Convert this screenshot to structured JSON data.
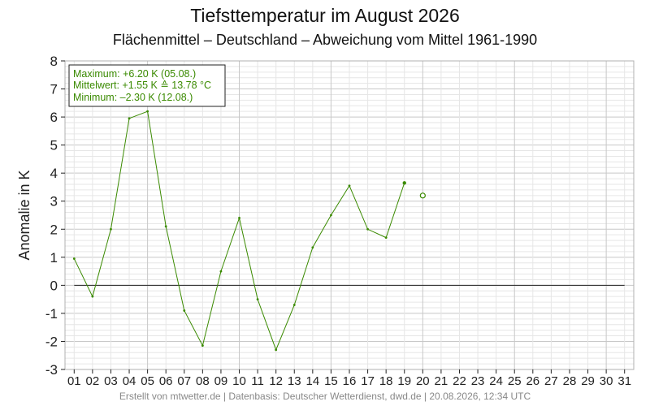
{
  "header": {
    "title": "Tiefsttemperatur im August 2026",
    "subtitle": "Flächenmittel – Deutschland – Abweichung vom Mittel 1961-1990"
  },
  "footer": {
    "text": "Erstellt von mtwetter.de | Datenbasis: Deutscher Wetterdienst, dwd.de | 20.08.2026, 12:34 UTC"
  },
  "stats": {
    "max": "Maximum: +6.20 K  (05.08.)",
    "mean": "Mittelwert: +1.55 K  ≙  13.78 °C",
    "min": "Minimum:   –2.30 K  (12.08.)"
  },
  "colors": {
    "series": "#3a8a00",
    "grid_major": "#c8c8c8",
    "grid_minor": "#e6e6e6",
    "zero_line": "#222222"
  },
  "chart_data": {
    "type": "line",
    "ylabel": "Anomalie in K",
    "xlabel": "",
    "ylim": [
      -3,
      8
    ],
    "xlim": [
      0.5,
      31.5
    ],
    "grid": true,
    "categories": [
      "01",
      "02",
      "03",
      "04",
      "05",
      "06",
      "07",
      "08",
      "09",
      "10",
      "11",
      "12",
      "13",
      "14",
      "15",
      "16",
      "17",
      "18",
      "19",
      "20",
      "21",
      "22",
      "23",
      "24",
      "25",
      "26",
      "27",
      "28",
      "29",
      "30",
      "31"
    ],
    "yticks": [
      "-3",
      "-2",
      "-1",
      "0",
      "1",
      "2",
      "3",
      "4",
      "5",
      "6",
      "7",
      "8"
    ],
    "series": [
      {
        "x": [
          1,
          2,
          3,
          4,
          5,
          6,
          7,
          8,
          9,
          10,
          11,
          12,
          13,
          14,
          15,
          16,
          17,
          18,
          19
        ],
        "values": [
          0.95,
          -0.4,
          2.0,
          5.95,
          6.2,
          2.1,
          -0.9,
          -2.15,
          0.5,
          2.4,
          -0.5,
          -2.3,
          -0.7,
          1.35,
          2.5,
          3.55,
          2.0,
          1.7,
          3.65
        ]
      }
    ],
    "forecast_point": {
      "x": 20,
      "value": 3.2
    }
  }
}
